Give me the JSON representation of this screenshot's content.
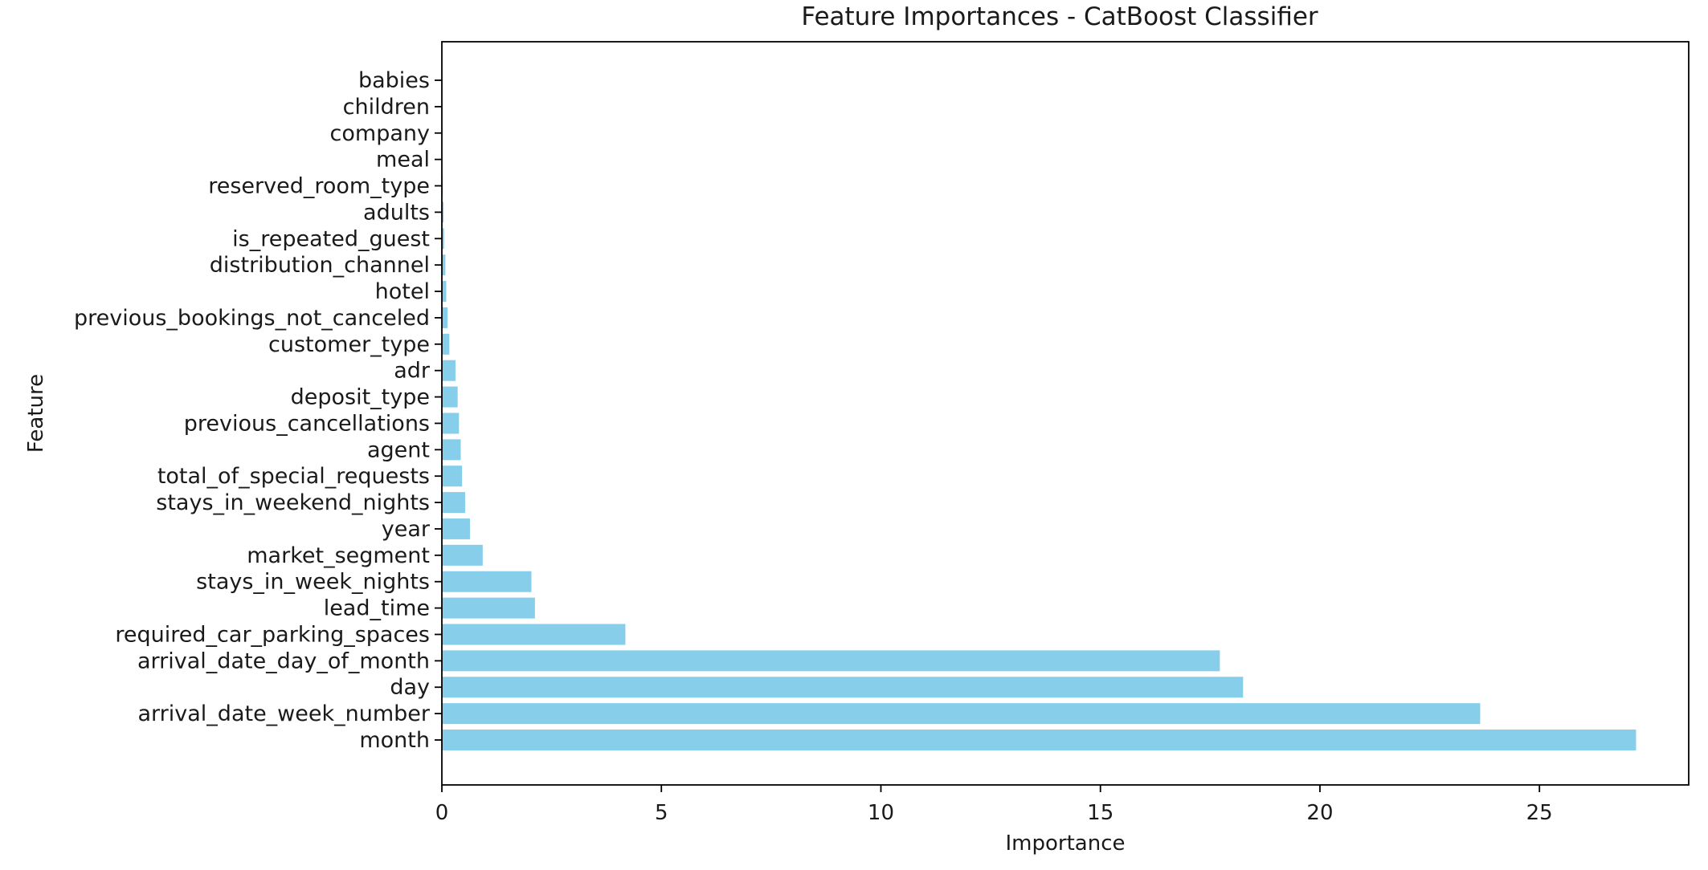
{
  "chart_data": {
    "type": "bar",
    "orientation": "horizontal",
    "title": "Feature Importances - CatBoost Classifier",
    "xlabel": "Importance",
    "ylabel": "Feature",
    "xlim": [
      0,
      28.4
    ],
    "xticks": [
      0,
      5,
      10,
      15,
      20,
      25
    ],
    "grid": false,
    "bar_color": "#87ceeb",
    "categories": [
      "month",
      "arrival_date_week_number",
      "day",
      "arrival_date_day_of_month",
      "required_car_parking_spaces",
      "lead_time",
      "stays_in_week_nights",
      "market_segment",
      "year",
      "stays_in_weekend_nights",
      "total_of_special_requests",
      "agent",
      "previous_cancellations",
      "deposit_type",
      "adr",
      "customer_type",
      "previous_bookings_not_canceled",
      "hotel",
      "distribution_channel",
      "is_repeated_guest",
      "adults",
      "reserved_room_type",
      "meal",
      "company",
      "children",
      "babies"
    ],
    "values": [
      27.2,
      23.65,
      18.25,
      17.72,
      4.18,
      2.12,
      2.04,
      0.93,
      0.64,
      0.53,
      0.46,
      0.43,
      0.39,
      0.36,
      0.31,
      0.17,
      0.13,
      0.1,
      0.08,
      0.05,
      0.04,
      0.02,
      0.01,
      0.0,
      0.0,
      0.0
    ]
  }
}
